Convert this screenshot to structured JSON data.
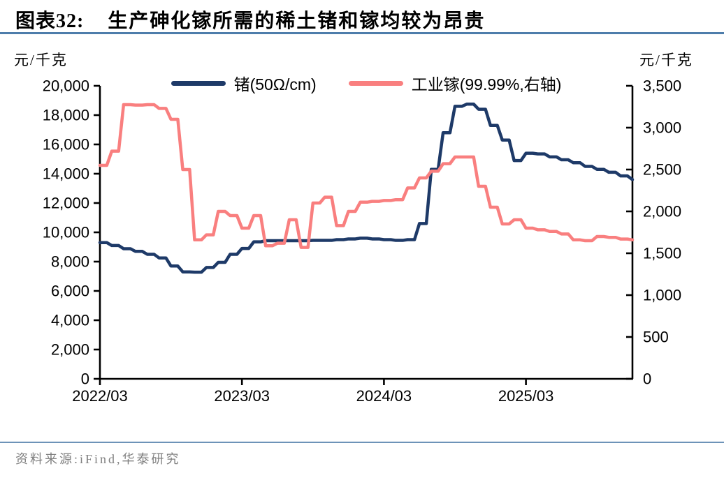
{
  "header": {
    "label": "图表32:",
    "title": "生产砷化镓所需的稀土锗和镓均较为昂贵"
  },
  "footer": {
    "source": "资料来源:iFind,华泰研究"
  },
  "colors": {
    "germanium_line": "#1e3a68",
    "gallium_line": "#f97f7f",
    "title_rule": "#4e7dab",
    "footer_rule": "#6d93b8",
    "axis": "#000000",
    "tick_label": "#000000",
    "source_text": "#7f7f7f"
  },
  "chart_data": {
    "type": "line",
    "title": "生产砷化镓所需的稀土锗和镓均较为昂贵",
    "grid": false,
    "legend_position": "top-center",
    "x": [
      "2022/03",
      "2022/04",
      "2022/05",
      "2022/06",
      "2022/07",
      "2022/08",
      "2022/09",
      "2022/10",
      "2022/11",
      "2022/12",
      "2023/01",
      "2023/02",
      "2023/03",
      "2023/04",
      "2023/05",
      "2023/06",
      "2023/07",
      "2023/08",
      "2023/09",
      "2023/10",
      "2023/11",
      "2023/12",
      "2024/01",
      "2024/02",
      "2024/03",
      "2024/04",
      "2024/05",
      "2024/06",
      "2024/07",
      "2024/08",
      "2024/09",
      "2024/10",
      "2024/11",
      "2024/12",
      "2025/01",
      "2025/02",
      "2025/03",
      "2025/04",
      "2025/05",
      "2025/06",
      "2025/07",
      "2025/08",
      "2025/09",
      "2025/10",
      "2025/11",
      "2025/12"
    ],
    "x_tick_labels": [
      "2022/03",
      "2023/03",
      "2024/03",
      "2025/03"
    ],
    "x_tick_indices": [
      0,
      12,
      24,
      36
    ],
    "left_axis": {
      "unit": "元/千克",
      "min": 0,
      "max": 20000,
      "step": 2000
    },
    "right_axis": {
      "unit": "元/千克",
      "min": 0,
      "max": 3500,
      "step": 500
    },
    "series": [
      {
        "name": "锗(50Ω/cm)",
        "axis": "left",
        "color": "#1e3a68",
        "values": [
          9300,
          9100,
          8880,
          8700,
          8500,
          8250,
          7700,
          7300,
          7280,
          7600,
          7950,
          8500,
          8900,
          9350,
          9430,
          9430,
          9430,
          9430,
          9450,
          9450,
          9500,
          9550,
          9600,
          9550,
          9500,
          9450,
          9500,
          10600,
          14300,
          16800,
          18600,
          18750,
          18400,
          17300,
          16300,
          14900,
          15400,
          15350,
          15150,
          14950,
          14750,
          14500,
          14300,
          14100,
          13850,
          13600
        ]
      },
      {
        "name": "工业镓(99.99%,右轴)",
        "axis": "right",
        "color": "#f97f7f",
        "values": [
          2550,
          2720,
          3275,
          3270,
          3275,
          3230,
          3100,
          2500,
          1660,
          1720,
          2000,
          1950,
          1800,
          1950,
          1590,
          1620,
          1900,
          1570,
          2100,
          2170,
          1830,
          2000,
          2110,
          2120,
          2130,
          2140,
          2280,
          2400,
          2480,
          2570,
          2650,
          2650,
          2300,
          2050,
          1850,
          1900,
          1800,
          1780,
          1760,
          1730,
          1660,
          1650,
          1700,
          1690,
          1670,
          1660
        ]
      }
    ]
  }
}
